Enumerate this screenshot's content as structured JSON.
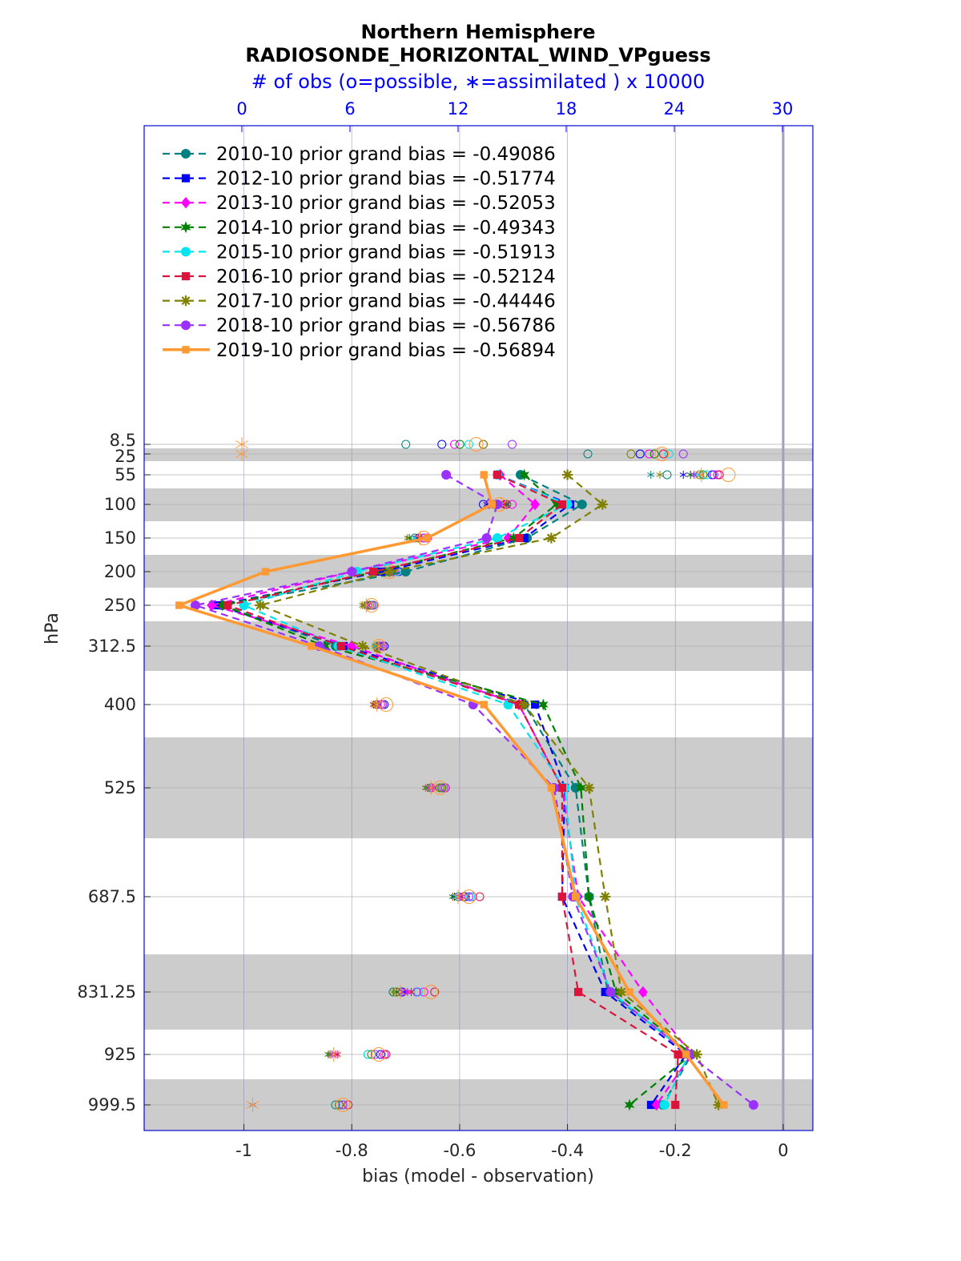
{
  "chart_data": {
    "type": "line",
    "title": "Northern Hemisphere",
    "subtitle": "RADIOSONDE_HORIZONTAL_WIND_VPguess",
    "top_axis_label": "# of obs (o=possible, ∗=assimilated ) x 10000",
    "top_ticks": [
      "0",
      "6",
      "12",
      "18",
      "24",
      "30"
    ],
    "xlabel": "bias (model - observation)",
    "ylabel": "hPa",
    "xlim": [
      -1.185,
      0.055
    ],
    "x_ticks": [
      "-1",
      "-0.8",
      "-0.6",
      "-0.4",
      "-0.2",
      "0"
    ],
    "levels": [
      "8.5",
      "25",
      "55",
      "100",
      "150",
      "200",
      "250",
      "312.5",
      "400",
      "525",
      "687.5",
      "831.25",
      "925",
      "999.5"
    ],
    "series": [
      {
        "name": "2010-10 prior grand bias = -0.49086",
        "color": "#008080",
        "dash": true,
        "marker": "circle",
        "values": [
          null,
          null,
          -0.487,
          -0.373,
          -0.475,
          -0.7,
          -1.04,
          -0.83,
          -0.48,
          -0.385,
          -0.36,
          -0.325,
          -0.17,
          -0.223
        ]
      },
      {
        "name": "2012-10 prior grand bias = -0.51774",
        "color": "#0000ff",
        "dash": true,
        "marker": "square",
        "values": [
          null,
          null,
          -0.53,
          -0.395,
          -0.48,
          -0.745,
          -1.05,
          -0.815,
          -0.46,
          -0.405,
          -0.41,
          -0.33,
          -0.18,
          -0.245
        ]
      },
      {
        "name": "2013-10 prior grand bias = -0.52053",
        "color": "#ff00ff",
        "dash": true,
        "marker": "diamond",
        "values": [
          null,
          null,
          -0.525,
          -0.46,
          -0.51,
          -0.8,
          -1.06,
          -0.8,
          -0.49,
          -0.41,
          -0.38,
          -0.26,
          -0.17,
          -0.235
        ]
      },
      {
        "name": "2014-10 prior grand bias = -0.49343",
        "color": "#008000",
        "dash": true,
        "marker": "star",
        "values": [
          null,
          null,
          -0.48,
          -0.42,
          -0.5,
          -0.755,
          -1.04,
          -0.85,
          -0.445,
          -0.375,
          -0.36,
          -0.31,
          -0.17,
          -0.285
        ]
      },
      {
        "name": "2015-10 prior grand bias = -0.51913",
        "color": "#00e5ee",
        "dash": true,
        "marker": "circle",
        "values": [
          null,
          null,
          -0.53,
          -0.4,
          -0.53,
          -0.79,
          -1.0,
          -0.825,
          -0.51,
          -0.405,
          -0.385,
          -0.32,
          -0.175,
          -0.22
        ]
      },
      {
        "name": "2016-10 prior grand bias = -0.52124",
        "color": "#dc143c",
        "dash": true,
        "marker": "square",
        "values": [
          null,
          null,
          -0.53,
          -0.41,
          -0.49,
          -0.76,
          -1.03,
          -0.82,
          -0.49,
          -0.41,
          -0.41,
          -0.38,
          -0.195,
          -0.2
        ]
      },
      {
        "name": "2017-10 prior grand bias = -0.44446",
        "color": "#808000",
        "dash": true,
        "marker": "asterisk",
        "values": [
          null,
          null,
          -0.4,
          -0.335,
          -0.43,
          -0.73,
          -0.97,
          -0.78,
          -0.48,
          -0.36,
          -0.33,
          -0.3,
          -0.16,
          -0.12
        ]
      },
      {
        "name": "2018-10 prior grand bias = -0.56786",
        "color": "#9b30ff",
        "dash": true,
        "marker": "circle",
        "values": [
          null,
          null,
          -0.625,
          -0.53,
          -0.55,
          -0.8,
          -1.09,
          -0.86,
          -0.575,
          -0.425,
          -0.39,
          -0.32,
          -0.175,
          -0.055
        ]
      },
      {
        "name": "2019-10 prior grand bias = -0.56894",
        "color": "#ff9933",
        "dash": false,
        "marker": "square",
        "values": [
          null,
          null,
          -0.555,
          -0.54,
          -0.66,
          -0.96,
          -1.12,
          -0.875,
          -0.555,
          -0.43,
          -0.385,
          -0.285,
          -0.18,
          -0.11
        ]
      }
    ],
    "obs_counts": {
      "note": "possible (o) and assimilated (*) observation counts per level, units x 10000 (top axis)",
      "possible": {
        "8.5": [
          9.1,
          11.1,
          11.8,
          12.1,
          12.6,
          13.4,
          13.4,
          15.0,
          13.0
        ],
        "25": [
          19.2,
          22.1,
          22.6,
          22.9,
          23.7,
          23.4,
          21.6,
          24.5,
          23.3
        ],
        "55": [
          23.6,
          26.1,
          26.4,
          25.6,
          25.8,
          26.5,
          25.4,
          26.2,
          27.0
        ],
        "100": [
          14.6,
          13.4,
          15.0,
          14.2,
          14.1,
          14.7,
          14.0,
          13.7,
          14.3
        ],
        "150": [
          9.6,
          10.1,
          10.3,
          10.1,
          10.1,
          10.1,
          9.8,
          10.1,
          10.1
        ],
        "200": [
          8.0,
          8.7,
          8.5,
          8.3,
          8.6,
          8.2,
          8.2,
          8.4,
          8.2
        ],
        "250": [
          7.0,
          7.3,
          7.1,
          7.2,
          7.3,
          7.0,
          7.0,
          7.3,
          7.2
        ],
        "312.5": [
          7.6,
          7.9,
          7.7,
          7.8,
          7.5,
          7.8,
          7.5,
          7.8,
          7.6
        ],
        "400": [
          7.5,
          7.9,
          7.7,
          7.8,
          7.8,
          7.8,
          7.8,
          7.8,
          8.0
        ],
        "525": [
          10.5,
          11.0,
          11.2,
          11.1,
          11.0,
          11.3,
          11.0,
          11.3,
          11.0
        ],
        "687.5": [
          12.0,
          12.4,
          12.8,
          12.3,
          12.7,
          13.2,
          12.3,
          12.6,
          12.6
        ],
        "831.25": [
          8.4,
          8.9,
          10.1,
          8.6,
          9.8,
          10.7,
          8.6,
          9.7,
          10.5
        ],
        "925": [
          7.0,
          7.7,
          7.9,
          7.2,
          7.0,
          8.0,
          7.2,
          7.4,
          7.6
        ],
        "999.5": [
          5.2,
          5.4,
          5.6,
          5.4,
          5.6,
          5.9,
          5.4,
          5.6,
          5.6
        ]
      },
      "assimilated": {
        "8.5": [
          null,
          null,
          null,
          null,
          null,
          null,
          null,
          null,
          0
        ],
        "25": [
          null,
          null,
          null,
          null,
          null,
          null,
          null,
          null,
          0
        ],
        "55": [
          22.7,
          24.5,
          24.9,
          24.9,
          25.3,
          25.5,
          23.2,
          25.1,
          25.5
        ],
        "100": [
          14.3,
          13.6,
          14.6,
          14.7,
          14.3,
          14.5,
          14.0,
          13.8,
          14.4
        ],
        "150": [
          9.6,
          9.7,
          10.1,
          9.3,
          9.6,
          9.8,
          9.2,
          10.0,
          9.9
        ],
        "200": [
          7.9,
          8.1,
          8.2,
          7.8,
          8.1,
          7.9,
          7.7,
          8.0,
          7.9
        ],
        "250": [
          6.8,
          6.9,
          7.0,
          6.8,
          6.9,
          6.9,
          6.7,
          6.9,
          6.9
        ],
        "312.5": [
          7.6,
          7.5,
          7.5,
          7.4,
          7.4,
          7.5,
          7.5,
          7.7,
          7.6
        ],
        "400": [
          7.4,
          7.5,
          7.6,
          7.3,
          7.4,
          7.3,
          7.4,
          7.5,
          7.5
        ],
        "525": [
          10.2,
          10.4,
          10.6,
          10.3,
          10.4,
          10.5,
          10.2,
          10.4,
          10.5
        ],
        "687.5": [
          11.9,
          11.8,
          12.1,
          11.7,
          11.9,
          12.2,
          12.0,
          12.1,
          12.0
        ],
        "831.25": [
          8.8,
          9.0,
          9.2,
          8.6,
          8.8,
          9.4,
          8.4,
          8.9,
          8.8
        ],
        "925": [
          4.9,
          5.0,
          5.2,
          4.8,
          4.9,
          5.3,
          4.9,
          5.0,
          5.1
        ],
        "999.5": [
          0.6,
          0.6,
          0.6,
          0.6,
          0.6,
          0.6,
          0.6,
          0.6,
          0.6
        ]
      }
    }
  }
}
